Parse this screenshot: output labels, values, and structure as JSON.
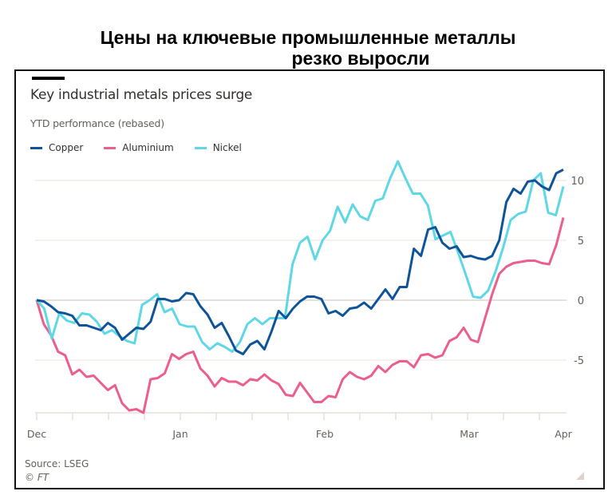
{
  "headline": {
    "line1": "Цены на ключевые промышленные металлы",
    "line2": "резко выросли"
  },
  "chart_data": {
    "type": "line",
    "title": "Key industrial metals prices surge",
    "subtitle": "YTD performance (rebased)",
    "xlabel": "",
    "ylabel": "",
    "x_tick_labels": [
      "Dec",
      "Jan",
      "Feb",
      "Mar",
      "Apr"
    ],
    "y_ticks": [
      10,
      5,
      0,
      -5
    ],
    "ylim": [
      -9.4,
      11.5
    ],
    "grid": true,
    "legend_position": "top-left",
    "series": [
      {
        "name": "Copper",
        "color": "#0f5499",
        "values": [
          0,
          -0.1,
          -0.5,
          -1,
          -1.1,
          -1.3,
          -2.1,
          -2.1,
          -2.3,
          -2.5,
          -1.9,
          -2.3,
          -3.3,
          -2.8,
          -2.3,
          -2.4,
          -1.8,
          0.1,
          0.1,
          -0.1,
          0,
          0.6,
          0.5,
          -0.5,
          -1.2,
          -2.3,
          -1.9,
          -3,
          -4.2,
          -4.5,
          -3.7,
          -3.4,
          -4.1,
          -2.6,
          -0.9,
          -1.5,
          -0.7,
          -0.1,
          0.3,
          0.3,
          0.1,
          -1.1,
          -0.9,
          -1.3,
          -0.7,
          -0.6,
          -0.2,
          -0.7,
          0.1,
          0.9,
          0.1,
          1.1,
          1.1,
          4.3,
          3.7,
          5.9,
          6.1,
          4.8,
          4.3,
          4.5,
          3.6,
          3.7,
          3.5,
          3.4,
          3.7,
          5,
          8.2,
          9.3,
          8.9,
          9.9,
          10,
          9.5,
          9.2,
          10.6,
          10.9
        ]
      },
      {
        "name": "Aluminium",
        "color": "#eb5e8d",
        "values": [
          0,
          -2,
          -2.9,
          -4.3,
          -4.6,
          -6.2,
          -5.8,
          -6.4,
          -6.3,
          -6.9,
          -7.5,
          -7.1,
          -8.6,
          -9.2,
          -9.1,
          -9.4,
          -6.6,
          -6.5,
          -6.1,
          -4.5,
          -4.9,
          -4.5,
          -4.3,
          -5.7,
          -6.3,
          -7.2,
          -6.5,
          -6.8,
          -6.8,
          -7.1,
          -6.6,
          -6.7,
          -6.2,
          -6.7,
          -7,
          -7.9,
          -8,
          -6.9,
          -7.7,
          -8.5,
          -8.5,
          -8,
          -8.1,
          -6.6,
          -6,
          -6.4,
          -6.6,
          -6.3,
          -5.5,
          -6,
          -5.4,
          -5.1,
          -5.1,
          -5.6,
          -4.6,
          -4.5,
          -4.8,
          -4.6,
          -3.4,
          -3.1,
          -2.3,
          -3.3,
          -3.5,
          -1.5,
          0.5,
          2.2,
          2.8,
          3.1,
          3.2,
          3.3,
          3.3,
          3.1,
          3,
          4.6,
          6.9
        ]
      },
      {
        "name": "Nickel",
        "color": "#5ed8e6",
        "values": [
          0,
          -0.7,
          -3.2,
          -1.1,
          -1.7,
          -1.9,
          -1.1,
          -1.2,
          -1.8,
          -2.8,
          -2.5,
          -3,
          -3.4,
          -3.6,
          -0.4,
          0,
          0.5,
          -1,
          -0.7,
          -2,
          -2.2,
          -2.2,
          -3.5,
          -4.1,
          -3.6,
          -3.9,
          -4.3,
          -3.5,
          -2,
          -1.5,
          -2,
          -1.5,
          -1.5,
          -1.5,
          3,
          4.8,
          5.3,
          3.4,
          5,
          5.8,
          7.8,
          6.5,
          8,
          7,
          6.7,
          8.3,
          8.5,
          10.2,
          11.6,
          10.2,
          8.9,
          8.9,
          7.9,
          5.1,
          5.4,
          5.7,
          4,
          2.2,
          0.3,
          0.2,
          0.8,
          2.4,
          4.4,
          6.7,
          7.2,
          7.4,
          10,
          10.6,
          7.3,
          7.1,
          9.5
        ]
      }
    ]
  },
  "footer": {
    "source": "Source: LSEG",
    "copyright": "© FT"
  }
}
